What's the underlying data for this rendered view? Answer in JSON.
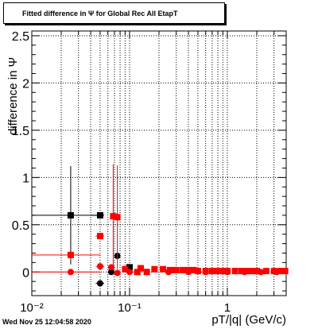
{
  "chart_data": {
    "type": "scatter",
    "title": "Fitted difference in  Ψ  for Global Rec All EtapT",
    "xlabel": "pT/|q| (GeV/c)",
    "ylabel": "difference in  Ψ",
    "xscale": "log",
    "xlim": [
      0.01,
      4.0
    ],
    "ylim": [
      -0.25,
      2.55
    ],
    "grid": true,
    "x_tick_labels": [
      "10⁻²",
      "10⁻¹",
      "1"
    ],
    "y_ticks": [
      0,
      0.5,
      1,
      1.5,
      2,
      2.5
    ],
    "y_tick_labels": [
      "0",
      "0.5",
      "1",
      "1.5",
      "2",
      "2.5"
    ],
    "series": [
      {
        "color": "#000000",
        "points": [
          {
            "x": 0.025,
            "y": 0.6,
            "xerr": [
              0.01,
              0.05
            ],
            "yerr": 0.52,
            "marker": "square"
          },
          {
            "x": 0.05,
            "y": 0.6,
            "xerr": [
              0.04,
              0.055
            ],
            "yerr": 0.0,
            "marker": "square"
          },
          {
            "x": 0.05,
            "y": -0.12,
            "xerr": [
              0.045,
              0.055
            ],
            "yerr": 0.0,
            "marker": "circle"
          },
          {
            "x": 0.065,
            "y": 0.0,
            "xerr": [
              0.06,
              0.07
            ],
            "yerr": 0.0,
            "marker": "circle"
          },
          {
            "x": 0.075,
            "y": 0.17,
            "xerr": [
              0.072,
              0.078
            ],
            "yerr": 0.0,
            "marker": "circle"
          },
          {
            "x": 0.1,
            "y": 0.05,
            "xerr": [
              0.095,
              0.105
            ],
            "yerr": 0.0,
            "marker": "square"
          }
        ]
      },
      {
        "color": "#ff0000",
        "points": [
          {
            "x": 0.025,
            "y": 0.18,
            "xerr": [
              0.01,
              0.05
            ],
            "yerr": 0.0,
            "marker": "square"
          },
          {
            "x": 0.025,
            "y": 0.0,
            "xerr": [
              0.01,
              0.05
            ],
            "yerr": 0.0,
            "marker": "circle"
          },
          {
            "x": 0.05,
            "y": 0.38,
            "xerr": [
              0.045,
              0.055
            ],
            "yerr": 0.0,
            "marker": "square"
          },
          {
            "x": 0.05,
            "y": 0.06,
            "xerr": [
              0.045,
              0.055
            ],
            "yerr": 0.0,
            "marker": "circle"
          },
          {
            "x": 0.068,
            "y": 0.59,
            "xerr": [
              0.065,
              0.071
            ],
            "yerr": 0.55,
            "marker": "square"
          },
          {
            "x": 0.075,
            "y": 0.58,
            "xerr": [
              0.072,
              0.078
            ],
            "yerr": 0.55,
            "marker": "square"
          },
          {
            "x": 0.065,
            "y": 0.05,
            "xerr": [
              0.062,
              0.068
            ],
            "yerr": 0.0,
            "marker": "circle"
          },
          {
            "x": 0.075,
            "y": -0.01,
            "xerr": [
              0.072,
              0.078
            ],
            "yerr": 0.0,
            "marker": "circle"
          },
          {
            "x": 0.09,
            "y": 0.03,
            "xerr": [
              0.085,
              0.095
            ],
            "yerr": 0.0,
            "marker": "square"
          },
          {
            "x": 0.12,
            "y": 0.0,
            "xerr": [
              0.11,
              0.13
            ],
            "yerr": 0.0,
            "marker": "square"
          },
          {
            "x": 0.13,
            "y": 0.04,
            "xerr": [
              0.125,
              0.135
            ],
            "yerr": 0.0,
            "marker": "square"
          },
          {
            "x": 0.15,
            "y": 0.0,
            "xerr": [
              0.14,
              0.16
            ],
            "yerr": 0.0,
            "marker": "square"
          },
          {
            "x": 0.18,
            "y": 0.03,
            "xerr": [
              0.17,
              0.19
            ],
            "yerr": 0.0,
            "marker": "square"
          },
          {
            "x": 0.22,
            "y": 0.03,
            "xerr": [
              0.21,
              0.23
            ],
            "yerr": 0.0,
            "marker": "square"
          },
          {
            "x": 0.26,
            "y": 0.02,
            "xerr": [
              0.25,
              0.27
            ],
            "yerr": 0.0,
            "marker": "square"
          },
          {
            "x": 0.3,
            "y": 0.02,
            "xerr": [
              0.29,
              0.31
            ],
            "yerr": 0.0,
            "marker": "square"
          },
          {
            "x": 0.35,
            "y": 0.02,
            "xerr": [
              0.34,
              0.36
            ],
            "yerr": 0.0,
            "marker": "square"
          },
          {
            "x": 0.4,
            "y": 0.02,
            "xerr": [
              0.39,
              0.41
            ],
            "yerr": 0.0,
            "marker": "square"
          },
          {
            "x": 0.45,
            "y": 0.02,
            "xerr": [
              0.44,
              0.46
            ],
            "yerr": 0.0,
            "marker": "square"
          },
          {
            "x": 0.5,
            "y": 0.01,
            "xerr": [
              0.49,
              0.51
            ],
            "yerr": 0.0,
            "marker": "square"
          },
          {
            "x": 0.6,
            "y": 0.01,
            "xerr": [
              0.58,
              0.62
            ],
            "yerr": 0.0,
            "marker": "square"
          },
          {
            "x": 0.7,
            "y": 0.01,
            "xerr": [
              0.68,
              0.72
            ],
            "yerr": 0.0,
            "marker": "square"
          },
          {
            "x": 0.8,
            "y": 0.01,
            "xerr": [
              0.78,
              0.82
            ],
            "yerr": 0.0,
            "marker": "square"
          },
          {
            "x": 0.9,
            "y": 0.01,
            "xerr": [
              0.88,
              0.92
            ],
            "yerr": 0.0,
            "marker": "square"
          },
          {
            "x": 1.0,
            "y": 0.01,
            "xerr": [
              0.98,
              1.02
            ],
            "yerr": 0.0,
            "marker": "square"
          },
          {
            "x": 1.2,
            "y": 0.01,
            "xerr": [
              1.17,
              1.23
            ],
            "yerr": 0.0,
            "marker": "square"
          },
          {
            "x": 1.4,
            "y": 0.01,
            "xerr": [
              1.37,
              1.43
            ],
            "yerr": 0.0,
            "marker": "square"
          },
          {
            "x": 1.6,
            "y": 0.01,
            "xerr": [
              1.57,
              1.63
            ],
            "yerr": 0.0,
            "marker": "square"
          },
          {
            "x": 1.8,
            "y": 0.01,
            "xerr": [
              1.77,
              1.83
            ],
            "yerr": 0.0,
            "marker": "square"
          },
          {
            "x": 2.0,
            "y": 0.01,
            "xerr": [
              1.97,
              2.03
            ],
            "yerr": 0.0,
            "marker": "square"
          },
          {
            "x": 2.5,
            "y": 0.01,
            "xerr": [
              2.45,
              2.55
            ],
            "yerr": 0.0,
            "marker": "square"
          },
          {
            "x": 3.0,
            "y": 0.01,
            "xerr": [
              2.9,
              3.1
            ],
            "yerr": 0.0,
            "marker": "square"
          },
          {
            "x": 3.5,
            "y": 0.01,
            "xerr": [
              3.4,
              3.6
            ],
            "yerr": 0.0,
            "marker": "square"
          },
          {
            "x": 3.9,
            "y": 0.01,
            "xerr": [
              3.8,
              4.0
            ],
            "yerr": 0.0,
            "marker": "square"
          },
          {
            "x": 0.1,
            "y": 0.0,
            "xerr": [
              0.09,
              0.11
            ],
            "yerr": 0.0,
            "marker": "circle"
          },
          {
            "x": 0.15,
            "y": 0.0,
            "xerr": [
              0.14,
              0.16
            ],
            "yerr": 0.0,
            "marker": "circle"
          },
          {
            "x": 0.25,
            "y": 0.0,
            "xerr": [
              0.24,
              0.26
            ],
            "yerr": 0.0,
            "marker": "circle"
          },
          {
            "x": 0.4,
            "y": 0.0,
            "xerr": [
              0.39,
              0.41
            ],
            "yerr": 0.0,
            "marker": "circle"
          },
          {
            "x": 0.6,
            "y": 0.0,
            "xerr": [
              0.58,
              0.62
            ],
            "yerr": 0.0,
            "marker": "circle"
          },
          {
            "x": 1.0,
            "y": 0.0,
            "xerr": [
              0.98,
              1.02
            ],
            "yerr": 0.0,
            "marker": "circle"
          },
          {
            "x": 1.5,
            "y": 0.0,
            "xerr": [
              1.47,
              1.53
            ],
            "yerr": 0.0,
            "marker": "circle"
          },
          {
            "x": 2.2,
            "y": 0.0,
            "xerr": [
              2.15,
              2.25
            ],
            "yerr": 0.0,
            "marker": "circle"
          },
          {
            "x": 3.2,
            "y": 0.0,
            "xerr": [
              3.1,
              3.3
            ],
            "yerr": 0.0,
            "marker": "circle"
          }
        ]
      }
    ]
  },
  "footer": {
    "timestamp": "Wed Nov 25 12:04:58 2020"
  }
}
